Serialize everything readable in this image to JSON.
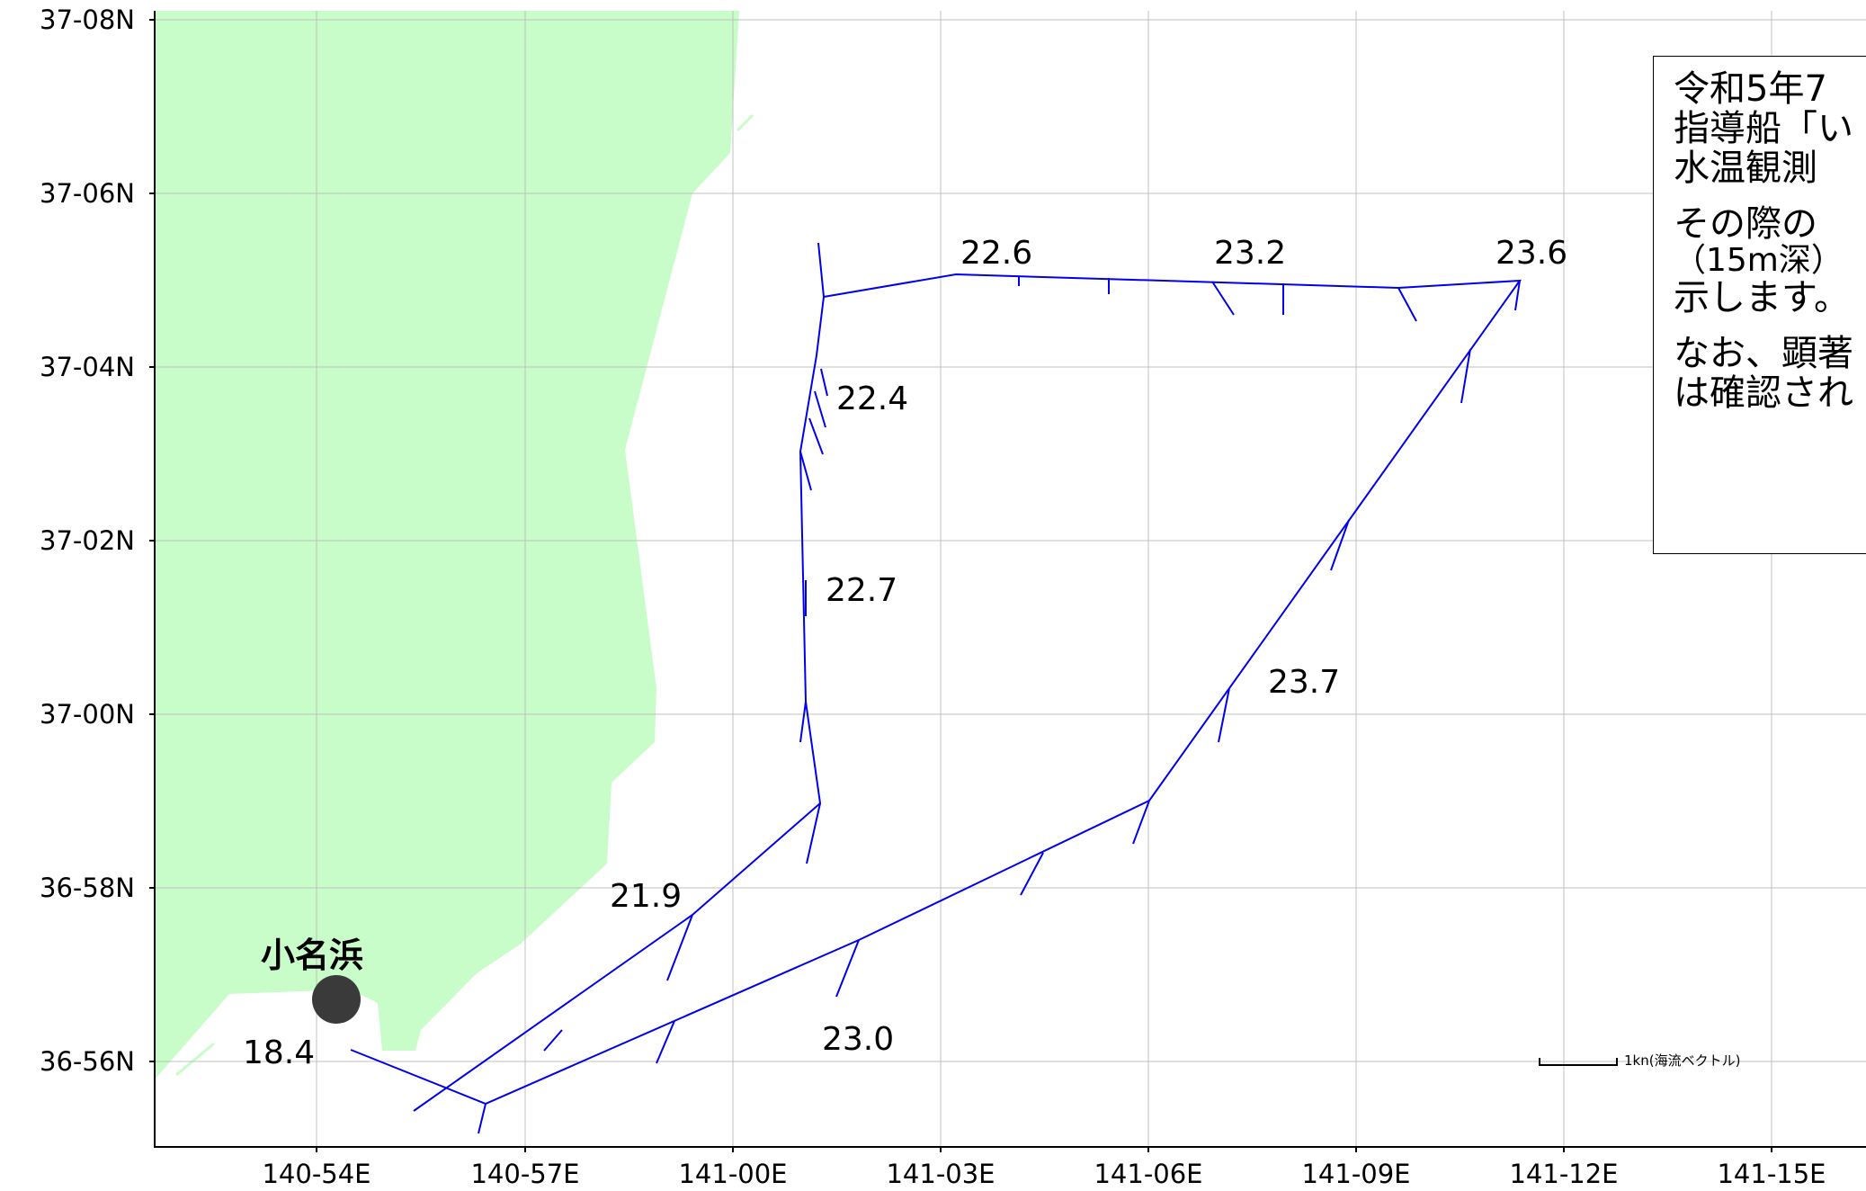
{
  "map": {
    "lat_labels": [
      "37-08N",
      "37-06N",
      "37-04N",
      "37-02N",
      "37-00N",
      "36-58N",
      "36-56N"
    ],
    "lon_labels": [
      "140-54E",
      "140-57E",
      "141-00E",
      "141-03E",
      "141-06E",
      "141-09E",
      "141-12E",
      "141-15E"
    ],
    "place": {
      "name": "小名浜",
      "icon": "port-dot-icon"
    },
    "temperature_labels": [
      "18.4",
      "21.9",
      "23.0",
      "22.7",
      "22.4",
      "22.6",
      "23.2",
      "23.6",
      "23.7"
    ],
    "scale_label": "1kn(海流ベクトル)",
    "colors": {
      "land": "#c8fcc8",
      "track": "#0000ee",
      "grid": "#c0c0c0",
      "marker": "#3a3a3a"
    }
  },
  "info": {
    "line1": "令和5年7",
    "line2": "指導船「い",
    "line3": "水温観測",
    "line4": "その際の",
    "line5": "（15m深）",
    "line6": "示します。",
    "line7": "なお、顕著",
    "line8": "は確認され"
  }
}
